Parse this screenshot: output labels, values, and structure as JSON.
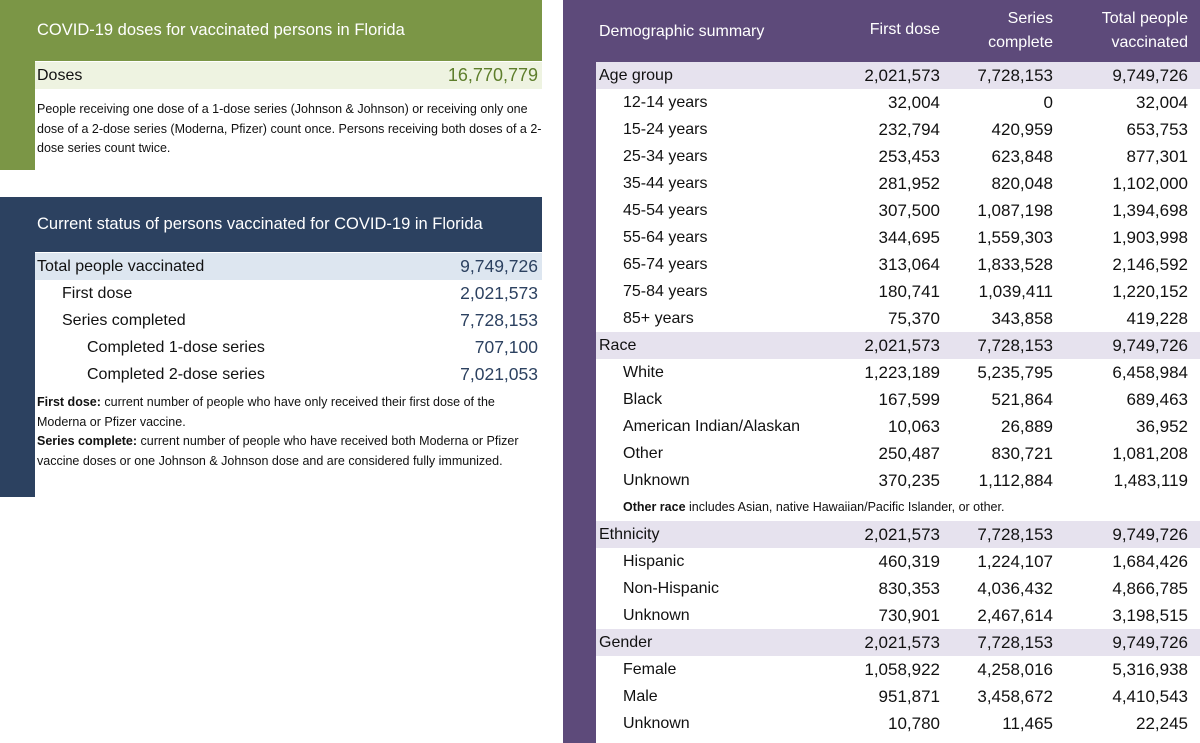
{
  "doses": {
    "title": "COVID-19 doses for vaccinated persons in Florida",
    "label": "Doses",
    "value": "16,770,779",
    "note": "People receiving one dose of a 1-dose series (Johnson & Johnson) or receiving only one dose of a 2-dose series (Moderna, Pfizer) count once. Persons receiving both doses of a 2-dose series count twice."
  },
  "status": {
    "title": "Current status of persons vaccinated for COVID-19 in Florida",
    "rows": [
      [
        "Total people vaccinated",
        "9,749,726"
      ],
      [
        "First dose",
        "2,021,573"
      ],
      [
        "Series completed",
        "7,728,153"
      ],
      [
        "Completed 1-dose series",
        "707,100"
      ],
      [
        "Completed 2-dose series",
        "7,021,053"
      ]
    ],
    "notes": [
      {
        "term": "First dose:",
        "text": " current number of people who have only received their first dose of the Moderna or Pfizer vaccine."
      },
      {
        "term": "Series complete:",
        "text": " current number of people who have received both Moderna or Pfizer vaccine doses or one Johnson & Johnson dose and are considered fully immunized."
      }
    ]
  },
  "demographics": {
    "headers": [
      "Demographic summary",
      "First dose",
      "Series complete",
      "Total people vaccinated"
    ],
    "groups": [
      {
        "name": "Age group",
        "totals": [
          "2,021,573",
          "7,728,153",
          "9,749,726"
        ],
        "rows": [
          [
            "12-14 years",
            "32,004",
            "0",
            "32,004"
          ],
          [
            "15-24 years",
            "232,794",
            "420,959",
            "653,753"
          ],
          [
            "25-34 years",
            "253,453",
            "623,848",
            "877,301"
          ],
          [
            "35-44 years",
            "281,952",
            "820,048",
            "1,102,000"
          ],
          [
            "45-54 years",
            "307,500",
            "1,087,198",
            "1,394,698"
          ],
          [
            "55-64 years",
            "344,695",
            "1,559,303",
            "1,903,998"
          ],
          [
            "65-74 years",
            "313,064",
            "1,833,528",
            "2,146,592"
          ],
          [
            "75-84 years",
            "180,741",
            "1,039,411",
            "1,220,152"
          ],
          [
            "85+ years",
            "75,370",
            "343,858",
            "419,228"
          ]
        ]
      },
      {
        "name": "Race",
        "totals": [
          "2,021,573",
          "7,728,153",
          "9,749,726"
        ],
        "rows": [
          [
            "White",
            "1,223,189",
            "5,235,795",
            "6,458,984"
          ],
          [
            "Black",
            "167,599",
            "521,864",
            "689,463"
          ],
          [
            "American Indian/Alaskan",
            "10,063",
            "26,889",
            "36,952"
          ],
          [
            "Other",
            "250,487",
            "830,721",
            "1,081,208"
          ],
          [
            "Unknown",
            "370,235",
            "1,112,884",
            "1,483,119"
          ]
        ],
        "note": {
          "term": "Other race",
          "text": " includes Asian, native Hawaiian/Pacific Islander, or other."
        }
      },
      {
        "name": "Ethnicity",
        "totals": [
          "2,021,573",
          "7,728,153",
          "9,749,726"
        ],
        "rows": [
          [
            "Hispanic",
            "460,319",
            "1,224,107",
            "1,684,426"
          ],
          [
            "Non-Hispanic",
            "830,353",
            "4,036,432",
            "4,866,785"
          ],
          [
            "Unknown",
            "730,901",
            "2,467,614",
            "3,198,515"
          ]
        ]
      },
      {
        "name": "Gender",
        "totals": [
          "2,021,573",
          "7,728,153",
          "9,749,726"
        ],
        "rows": [
          [
            "Female",
            "1,058,922",
            "4,258,016",
            "5,316,938"
          ],
          [
            "Male",
            "951,871",
            "3,458,672",
            "4,410,543"
          ],
          [
            "Unknown",
            "10,780",
            "11,465",
            "22,245"
          ]
        ]
      }
    ]
  }
}
